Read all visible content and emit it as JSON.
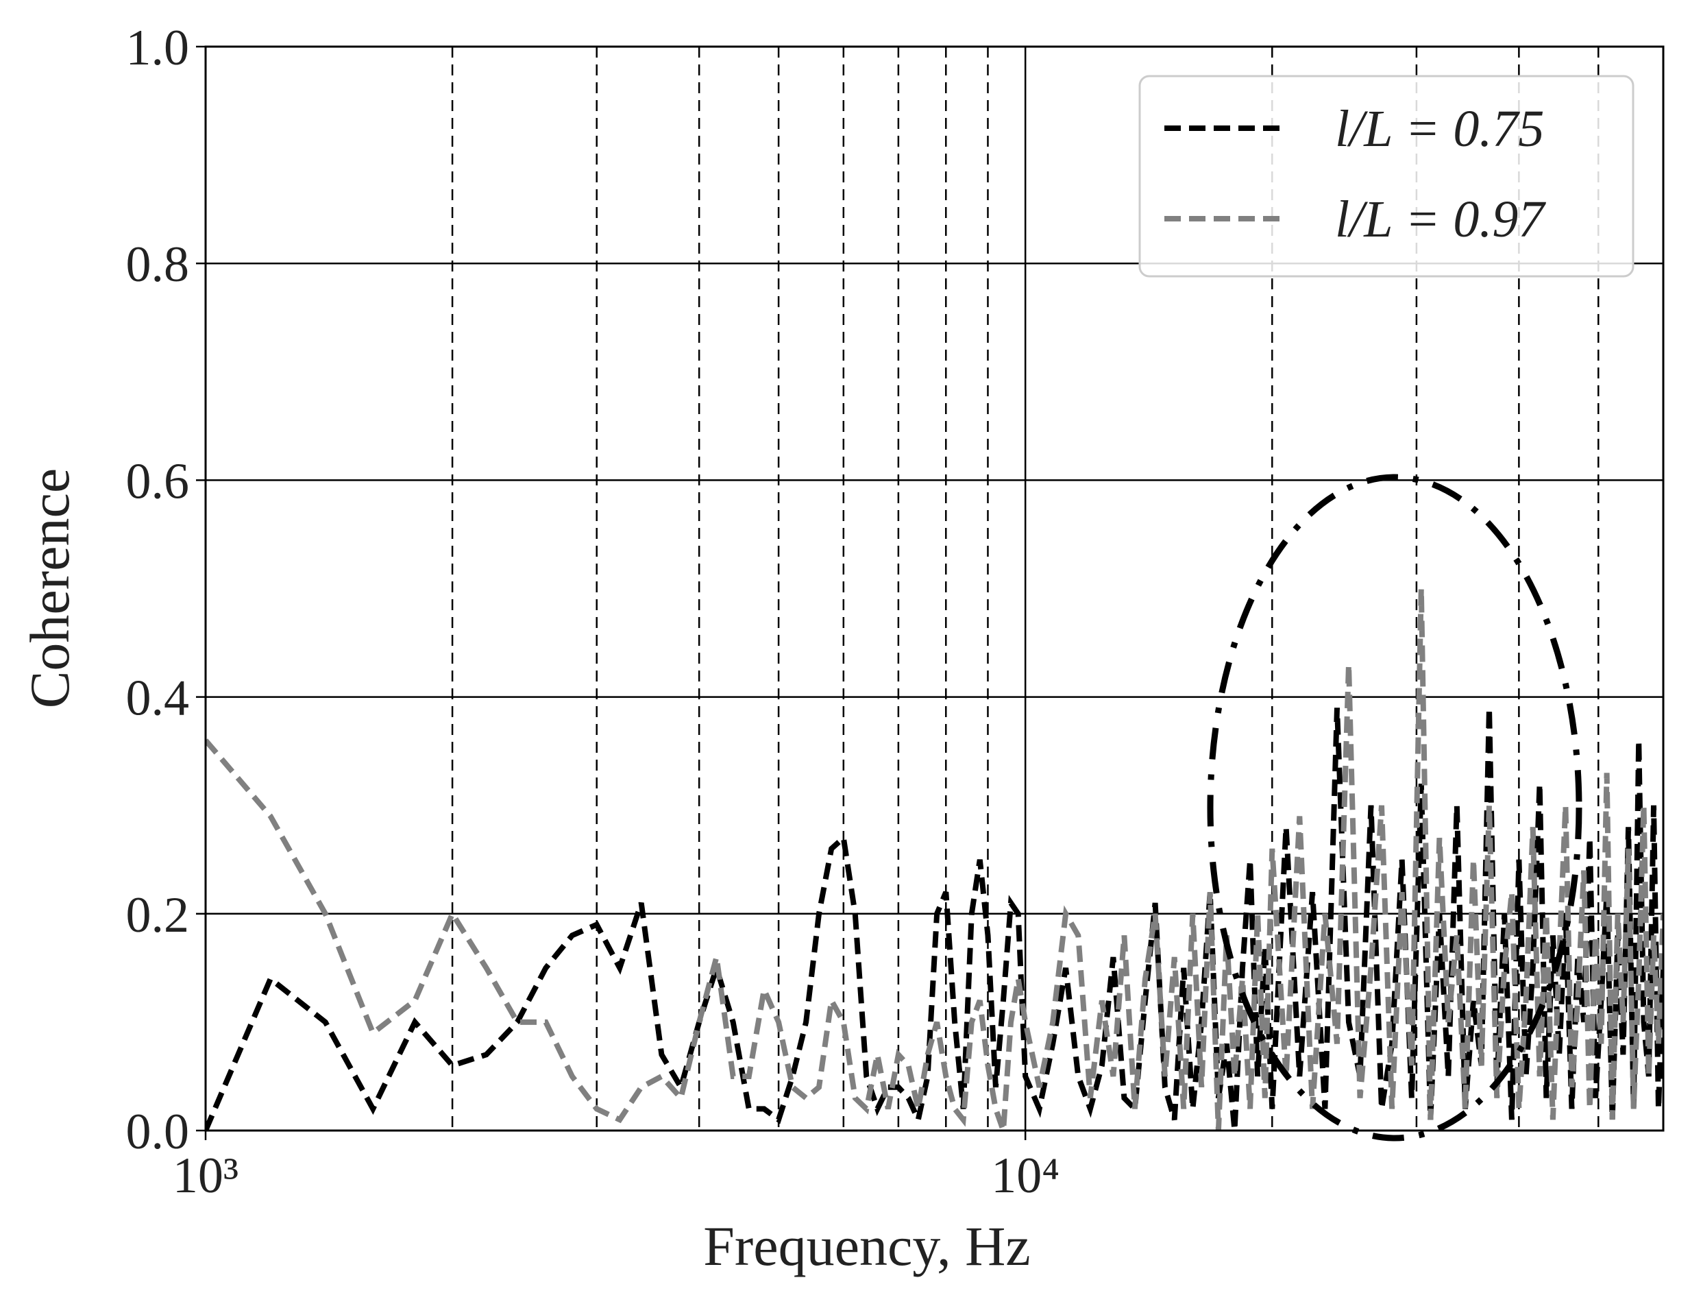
{
  "chart_data": {
    "type": "line",
    "x_label": "Frequency, Hz",
    "y_label": "Coherence",
    "xscale": "log",
    "xlim": [
      1000,
      60000
    ],
    "ylim": [
      0,
      1
    ],
    "xticks": [
      {
        "value": 1000,
        "label": "10³"
      },
      {
        "value": 10000,
        "label": "10⁴"
      }
    ],
    "xminorticks": [
      2000,
      3000,
      4000,
      5000,
      6000,
      7000,
      8000,
      9000,
      20000,
      30000,
      40000,
      50000
    ],
    "yticks": [
      {
        "value": 0,
        "label": "0.0"
      },
      0.2,
      0.4,
      0.6,
      0.8,
      {
        "value": 1,
        "label": "1.0"
      }
    ],
    "grid": true,
    "legend": "upper right",
    "x": [
      1000,
      1200,
      1400,
      1600,
      1800,
      2000,
      2200,
      2400,
      2600,
      2800,
      3000,
      3200,
      3400,
      3600,
      3800,
      4000,
      4200,
      4400,
      4600,
      4800,
      5000,
      5200,
      5400,
      5600,
      5800,
      6000,
      6200,
      6400,
      6600,
      6800,
      7000,
      7200,
      7400,
      7600,
      7800,
      8000,
      8200,
      8400,
      8600,
      8800,
      9000,
      9200,
      9400,
      9600,
      9800,
      10000,
      10400,
      10800,
      11200,
      11600,
      12000,
      12400,
      12800,
      13200,
      13600,
      14000,
      14400,
      14800,
      15200,
      15600,
      16000,
      16400,
      16800,
      17200,
      17600,
      18000,
      18400,
      18800,
      19200,
      19600,
      20000,
      20800,
      21600,
      22400,
      23200,
      24000,
      24800,
      25600,
      26400,
      27200,
      28000,
      28800,
      29600,
      30400,
      31200,
      32000,
      32800,
      33600,
      34400,
      35200,
      36000,
      36800,
      37600,
      38400,
      39200,
      40000,
      40800,
      41600,
      42400,
      43200,
      44000,
      44800,
      45600,
      46400,
      47200,
      48000,
      48800,
      49600,
      50400,
      51200,
      52000,
      52800,
      53600,
      54400,
      55200,
      56000,
      56800,
      57600,
      58400,
      59200,
      60000
    ],
    "series": [
      {
        "name": "l/L = 0.75",
        "color": "#000000",
        "values": [
          0.0,
          0.14,
          0.1,
          0.02,
          0.1,
          0.06,
          0.07,
          0.1,
          0.15,
          0.18,
          0.19,
          0.15,
          0.21,
          0.07,
          0.04,
          0.1,
          0.15,
          0.1,
          0.02,
          0.02,
          0.01,
          0.05,
          0.1,
          0.2,
          0.26,
          0.27,
          0.2,
          0.05,
          0.02,
          0.04,
          0.04,
          0.03,
          0.01,
          0.05,
          0.2,
          0.22,
          0.1,
          0.02,
          0.2,
          0.25,
          0.18,
          0.04,
          0.12,
          0.21,
          0.2,
          0.05,
          0.02,
          0.08,
          0.15,
          0.05,
          0.02,
          0.06,
          0.16,
          0.03,
          0.02,
          0.12,
          0.21,
          0.04,
          0.01,
          0.15,
          0.02,
          0.1,
          0.22,
          0.03,
          0.08,
          0.0,
          0.15,
          0.25,
          0.05,
          0.17,
          0.02,
          0.28,
          0.05,
          0.22,
          0.02,
          0.39,
          0.1,
          0.05,
          0.3,
          0.02,
          0.08,
          0.25,
          0.03,
          0.32,
          0.01,
          0.2,
          0.05,
          0.3,
          0.02,
          0.12,
          0.06,
          0.39,
          0.04,
          0.2,
          0.01,
          0.25,
          0.05,
          0.15,
          0.32,
          0.03,
          0.18,
          0.07,
          0.2,
          0.02,
          0.16,
          0.1,
          0.27,
          0.03,
          0.12,
          0.22,
          0.01,
          0.18,
          0.07,
          0.28,
          0.02,
          0.36,
          0.1,
          0.05,
          0.3,
          0.02,
          0.15
        ]
      },
      {
        "name": "l/L = 0.97",
        "color": "#808080",
        "values": [
          0.36,
          0.29,
          0.2,
          0.09,
          0.12,
          0.2,
          0.15,
          0.1,
          0.1,
          0.05,
          0.02,
          0.01,
          0.04,
          0.05,
          0.03,
          0.1,
          0.16,
          0.05,
          0.05,
          0.13,
          0.1,
          0.04,
          0.03,
          0.04,
          0.12,
          0.1,
          0.03,
          0.02,
          0.07,
          0.02,
          0.07,
          0.06,
          0.02,
          0.07,
          0.1,
          0.05,
          0.02,
          0.01,
          0.1,
          0.12,
          0.06,
          0.02,
          0.0,
          0.1,
          0.14,
          0.1,
          0.04,
          0.1,
          0.2,
          0.18,
          0.03,
          0.12,
          0.05,
          0.18,
          0.02,
          0.14,
          0.2,
          0.05,
          0.16,
          0.02,
          0.2,
          0.04,
          0.22,
          0.0,
          0.18,
          0.05,
          0.14,
          0.02,
          0.2,
          0.03,
          0.26,
          0.05,
          0.29,
          0.02,
          0.2,
          0.08,
          0.43,
          0.03,
          0.15,
          0.3,
          0.02,
          0.22,
          0.06,
          0.5,
          0.01,
          0.27,
          0.1,
          0.18,
          0.02,
          0.25,
          0.06,
          0.3,
          0.03,
          0.15,
          0.22,
          0.02,
          0.12,
          0.28,
          0.05,
          0.2,
          0.01,
          0.16,
          0.3,
          0.04,
          0.12,
          0.24,
          0.02,
          0.18,
          0.08,
          0.33,
          0.01,
          0.2,
          0.1,
          0.26,
          0.02,
          0.14,
          0.3,
          0.05,
          0.18,
          0.08,
          0.2
        ]
      }
    ]
  }
}
